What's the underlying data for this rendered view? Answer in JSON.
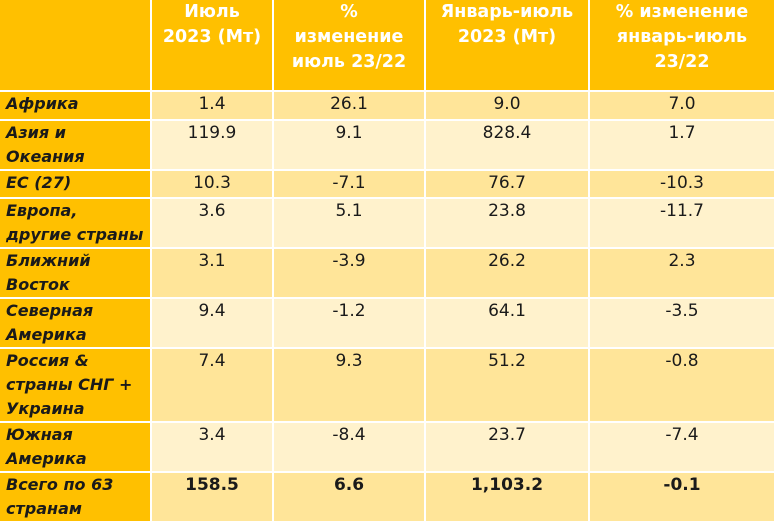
{
  "headers": [
    "",
    "Июль\n2023 (Мт)",
    "%\nизменение\nиюль 23/22",
    "Январь-июль\n2023 (Мт)",
    "% изменение\nянварь-июль\n23/22"
  ],
  "rows": [
    {
      "region": "Африка",
      "values": [
        "1.4",
        "26.1",
        "9.0",
        "7.0"
      ]
    },
    {
      "region": "Азия и Океания",
      "values": [
        "119.9",
        "9.1",
        "828.4",
        "1.7"
      ]
    },
    {
      "region": "ЕС (27)",
      "values": [
        "10.3",
        "-7.1",
        "76.7",
        "-10.3"
      ]
    },
    {
      "region": "Европа, другие страны",
      "values": [
        "3.6",
        "5.1",
        "23.8",
        "-11.7"
      ]
    },
    {
      "region": "Ближний Восток",
      "values": [
        "3.1",
        "-3.9",
        "26.2",
        "2.3"
      ]
    },
    {
      "region": "Северная Америка",
      "values": [
        "9.4",
        "-1.2",
        "64.1",
        "-3.5"
      ]
    },
    {
      "region": "Россия & страны СНГ + Украина",
      "values": [
        "7.4",
        "9.3",
        "51.2",
        "-0.8"
      ]
    },
    {
      "region": "Южная Америка",
      "values": [
        "3.4",
        "-8.4",
        "23.7",
        "-7.4"
      ]
    },
    {
      "region": "Всего по 63 странам",
      "values": [
        "158.5",
        "6.6",
        "1,103.2",
        "-0.1"
      ]
    }
  ],
  "colors": {
    "header_bg": "#ffc000",
    "row_light": "#fff2cc",
    "row_dark": "#ffe599"
  }
}
